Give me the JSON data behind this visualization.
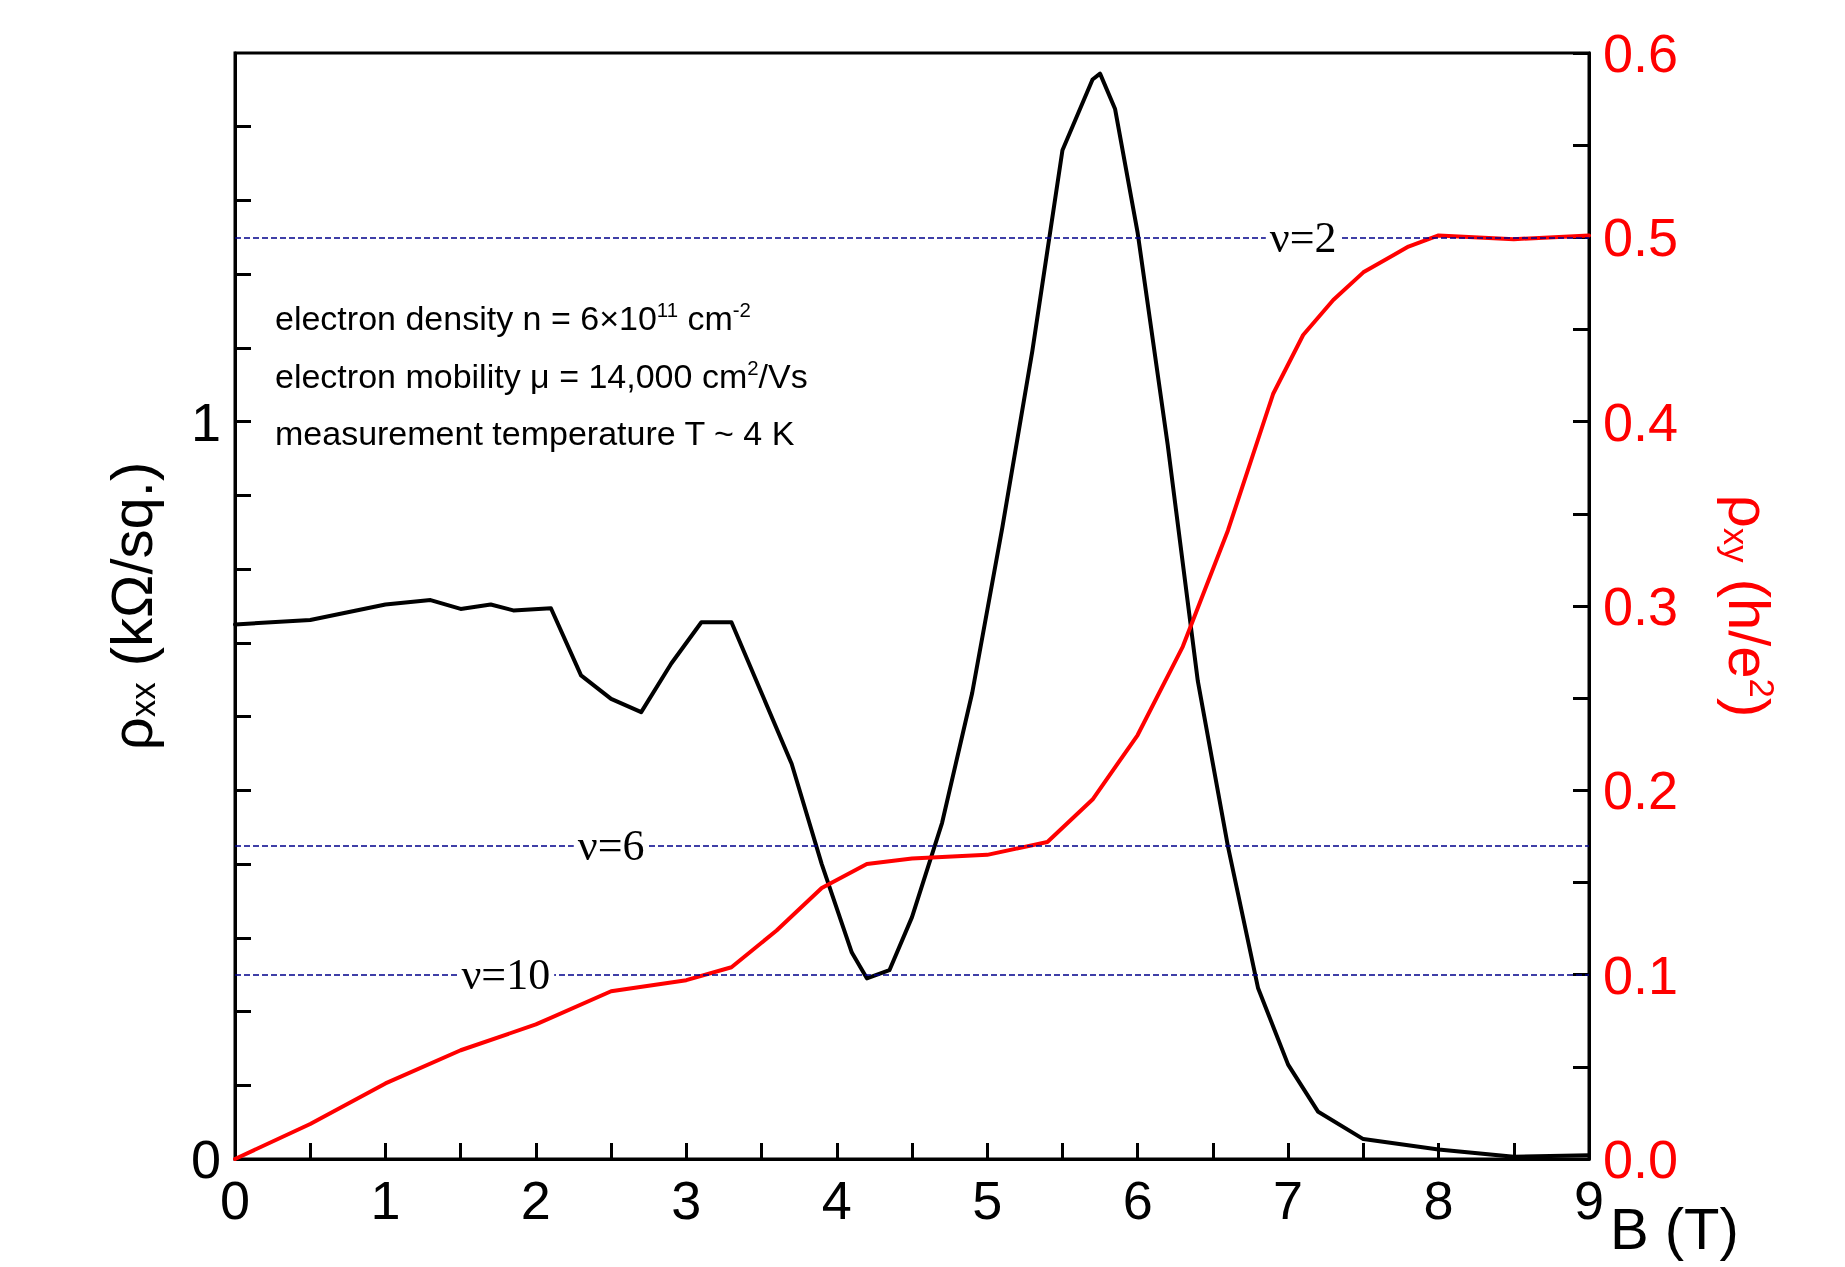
{
  "chart_data": {
    "type": "line",
    "xlabel": "B (T)",
    "ylabel": "ρ$_{xx}$ (kΩ/sq.)",
    "y2label": "ρ$_{xy}$ (h/e$^{2}$)",
    "xlim": [
      0,
      9
    ],
    "xticks": [
      0,
      {
        "value": 0.5,
        "label": null
      },
      1,
      {
        "value": 1.5,
        "label": null
      },
      2,
      {
        "value": 2.5,
        "label": null
      },
      3,
      {
        "value": 3.5,
        "label": null
      },
      4,
      {
        "value": 4.5,
        "label": null
      },
      5,
      {
        "value": 5.5,
        "label": null
      },
      6,
      {
        "value": 6.5,
        "label": null
      },
      7,
      {
        "value": 7.5,
        "label": null
      },
      8,
      {
        "value": 8.5,
        "label": null
      },
      9
    ],
    "ylim": [
      0,
      1.5
    ],
    "yticks": [
      0,
      {
        "value": 0.1,
        "label": null
      },
      {
        "value": 0.2,
        "label": null
      },
      {
        "value": 0.3,
        "label": null
      },
      {
        "value": 0.4,
        "label": null
      },
      {
        "value": 0.5,
        "label": null
      },
      {
        "value": 0.6,
        "label": null
      },
      {
        "value": 0.7,
        "label": null
      },
      {
        "value": 0.8,
        "label": null
      },
      {
        "value": 0.9,
        "label": null
      },
      1,
      {
        "value": 1.1,
        "label": null
      },
      {
        "value": 1.2,
        "label": null
      },
      {
        "value": 1.3,
        "label": null
      },
      {
        "value": 1.4,
        "label": null
      }
    ],
    "y2lim": [
      0,
      0.6
    ],
    "y2ticks": [
      {
        "value": 0,
        "label": "0.0"
      },
      {
        "value": 0.05,
        "label": null
      },
      0.1,
      {
        "value": 0.15,
        "label": null
      },
      0.2,
      {
        "value": 0.25,
        "label": null
      },
      0.3,
      {
        "value": 0.35,
        "label": null
      },
      0.4,
      {
        "value": 0.45,
        "label": null
      },
      0.5,
      {
        "value": 0.55,
        "label": null
      },
      0.6
    ],
    "grid": false,
    "marker": "none",
    "line_style": "solid",
    "annotations": [
      "electron density n = 6×10$^{11}$ cm$^{-2}$",
      "electron mobility μ = 14,000 cm$^{2}$/Vs",
      "measurement temperature T ~ 4 K",
      {
        "text": "ν=2",
        "x": 7.1,
        "y": 1.25
      },
      {
        "text": "ν=6",
        "x": 2.5,
        "y": 0.425
      },
      {
        "text": "ν=10",
        "x": 1.8,
        "y": 0.25
      }
    ],
    "ref_lines": [
      {
        "axis": "y2",
        "value": 0.5,
        "color": "#00008b",
        "line_style": "dashed"
      },
      {
        "axis": "y2",
        "value": 0.17,
        "color": "#00008b",
        "line_style": "dashed"
      },
      {
        "axis": "y2",
        "value": 0.1,
        "color": "#00008b",
        "line_style": "dashed"
      }
    ],
    "series": [
      {
        "color": "#000000",
        "x": [
          0,
          0.5,
          1.0,
          1.3,
          1.5,
          1.7,
          1.85,
          2.1,
          2.3,
          2.5,
          2.7,
          2.9,
          3.1,
          3.3,
          3.5,
          3.7,
          3.9,
          4.1,
          4.2,
          4.35,
          4.5,
          4.7,
          4.9,
          5.1,
          5.3,
          5.5,
          5.7,
          5.75,
          5.85,
          6.0,
          6.2,
          6.4,
          6.6,
          6.8,
          7.0,
          7.2,
          7.5,
          8.0,
          8.5,
          9.0
        ],
        "values": [
          0.725,
          0.731,
          0.752,
          0.758,
          0.746,
          0.752,
          0.744,
          0.747,
          0.656,
          0.624,
          0.606,
          0.672,
          0.728,
          0.728,
          0.632,
          0.536,
          0.4,
          0.28,
          0.245,
          0.256,
          0.328,
          0.456,
          0.632,
          0.856,
          1.096,
          1.368,
          1.464,
          1.472,
          1.424,
          1.256,
          0.968,
          0.648,
          0.424,
          0.232,
          0.128,
          0.064,
          0.027,
          0.013,
          0.003,
          0.005
        ]
      },
      {
        "color": "#ff0000",
        "axis": "y2",
        "x": [
          0,
          0.5,
          1.0,
          1.5,
          2.0,
          2.5,
          3.0,
          3.3,
          3.6,
          3.9,
          4.2,
          4.5,
          5.0,
          5.4,
          5.7,
          6.0,
          6.3,
          6.6,
          6.9,
          7.1,
          7.3,
          7.5,
          7.8,
          8.0,
          8.5,
          9.0
        ],
        "values": [
          0,
          0.019,
          0.041,
          0.059,
          0.073,
          0.091,
          0.097,
          0.104,
          0.124,
          0.147,
          0.16,
          0.163,
          0.165,
          0.172,
          0.195,
          0.23,
          0.278,
          0.341,
          0.415,
          0.447,
          0.466,
          0.481,
          0.495,
          0.501,
          0.499,
          0.501
        ]
      }
    ]
  }
}
